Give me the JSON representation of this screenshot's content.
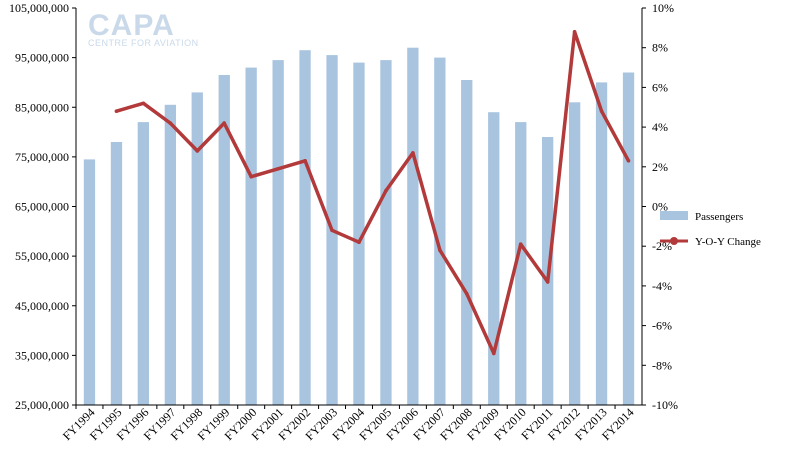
{
  "logo": {
    "name": "CAPA",
    "tagline": "CENTRE FOR AVIATION"
  },
  "chart_data": {
    "type": "bar",
    "categories": [
      "FY1994",
      "FY1995",
      "FY1996",
      "FY1997",
      "FY1998",
      "FY1999",
      "FY2000",
      "FY2001",
      "FY2002",
      "FY2003",
      "FY2004",
      "FY2005",
      "FY2006",
      "FY2007",
      "FY2008",
      "FY2009",
      "FY2010",
      "FY2011",
      "FY2012",
      "FY2013",
      "FY2014"
    ],
    "series": [
      {
        "name": "Passengers",
        "type": "bar",
        "axis": "left",
        "color": "#a9c4df",
        "values": [
          74500000,
          78000000,
          82000000,
          85500000,
          88000000,
          91500000,
          93000000,
          94500000,
          96500000,
          95500000,
          94000000,
          94500000,
          97000000,
          95000000,
          90500000,
          84000000,
          82000000,
          79000000,
          86000000,
          90000000,
          92000000
        ]
      },
      {
        "name": "Y-O-Y Change",
        "type": "line",
        "axis": "right",
        "color": "#b23a3a",
        "values": [
          null,
          4.8,
          5.2,
          4.2,
          2.8,
          4.2,
          1.5,
          1.9,
          2.3,
          -1.2,
          -1.8,
          0.8,
          2.7,
          -2.2,
          -4.4,
          -7.4,
          -1.9,
          -3.8,
          8.8,
          4.8,
          2.3
        ]
      }
    ],
    "y_left": {
      "ylim": [
        25000000,
        105000000
      ],
      "tick_labels": [
        "25,000,000",
        "35,000,000",
        "45,000,000",
        "55,000,000",
        "65,000,000",
        "75,000,000",
        "85,000,000",
        "95,000,000",
        "105,000,000"
      ]
    },
    "y_right": {
      "ylim": [
        -10,
        10
      ],
      "tick_labels": [
        "-10%",
        "-8%",
        "-6%",
        "-4%",
        "-2%",
        "0%",
        "2%",
        "4%",
        "6%",
        "8%",
        "10%"
      ]
    },
    "legend_position": "right",
    "grid": false
  }
}
